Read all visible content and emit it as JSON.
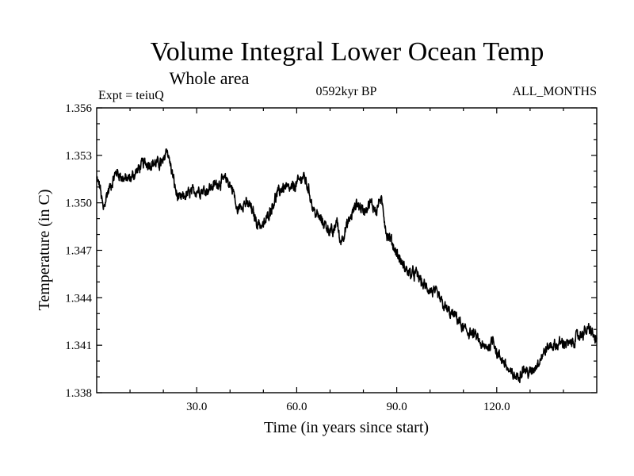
{
  "chart_data": {
    "type": "line",
    "title": "Volume Integral Lower Ocean Temp",
    "subtitle": "Whole area",
    "experiment": "Expt = teiuQ",
    "period": "0592kyr BP",
    "season": "ALL_MONTHS",
    "xlabel": "Time (in years since start)",
    "ylabel": "Temperature (in C)",
    "xlim": [
      0,
      150
    ],
    "ylim": [
      1.338,
      1.356
    ],
    "xticks": [
      30,
      60,
      90,
      120
    ],
    "xtick_labels": [
      "30.0",
      "60.0",
      "90.0",
      "120.0"
    ],
    "yticks": [
      1.338,
      1.341,
      1.344,
      1.347,
      1.35,
      1.353,
      1.356
    ],
    "ytick_labels": [
      "1.338",
      "1.341",
      "1.344",
      "1.347",
      "1.350",
      "1.353",
      "1.356"
    ],
    "line_color": "#000000",
    "series": [
      {
        "name": "Temperature",
        "x": [
          0,
          1,
          2,
          3,
          4,
          6,
          8,
          10,
          12,
          14,
          16,
          18,
          20,
          21,
          22,
          23,
          24,
          25,
          27,
          30,
          33,
          36,
          39,
          41,
          42,
          44,
          46,
          48,
          50,
          52,
          54,
          56,
          58,
          60,
          62,
          63,
          64,
          65,
          67,
          69,
          71,
          72,
          73,
          74,
          76,
          78,
          80,
          82,
          84,
          85,
          86,
          87,
          88,
          90,
          92,
          94,
          96,
          98,
          100,
          102,
          104,
          106,
          108,
          110,
          112,
          114,
          116,
          118,
          119,
          120,
          122,
          124,
          126,
          128,
          130,
          132,
          134,
          136,
          138,
          140,
          142,
          144,
          146,
          148,
          150
        ],
        "values": [
          1.3515,
          1.351,
          1.3495,
          1.3505,
          1.351,
          1.352,
          1.3515,
          1.3515,
          1.352,
          1.3525,
          1.3525,
          1.3525,
          1.3525,
          1.3535,
          1.3525,
          1.3515,
          1.3505,
          1.3502,
          1.3505,
          1.3508,
          1.3508,
          1.3512,
          1.3515,
          1.3508,
          1.3495,
          1.35,
          1.3498,
          1.3488,
          1.3485,
          1.3495,
          1.3505,
          1.351,
          1.3508,
          1.3512,
          1.3517,
          1.3512,
          1.3505,
          1.3495,
          1.349,
          1.3485,
          1.348,
          1.349,
          1.3475,
          1.348,
          1.349,
          1.35,
          1.3495,
          1.35,
          1.3495,
          1.3503,
          1.3495,
          1.348,
          1.3478,
          1.3468,
          1.346,
          1.3455,
          1.3455,
          1.3448,
          1.3445,
          1.3442,
          1.3435,
          1.343,
          1.3428,
          1.342,
          1.3418,
          1.3415,
          1.3408,
          1.341,
          1.3415,
          1.3405,
          1.34,
          1.3392,
          1.339,
          1.3395,
          1.3392,
          1.3398,
          1.3405,
          1.341,
          1.341,
          1.3412,
          1.341,
          1.3415,
          1.3418,
          1.342,
          1.3412
        ]
      }
    ]
  }
}
